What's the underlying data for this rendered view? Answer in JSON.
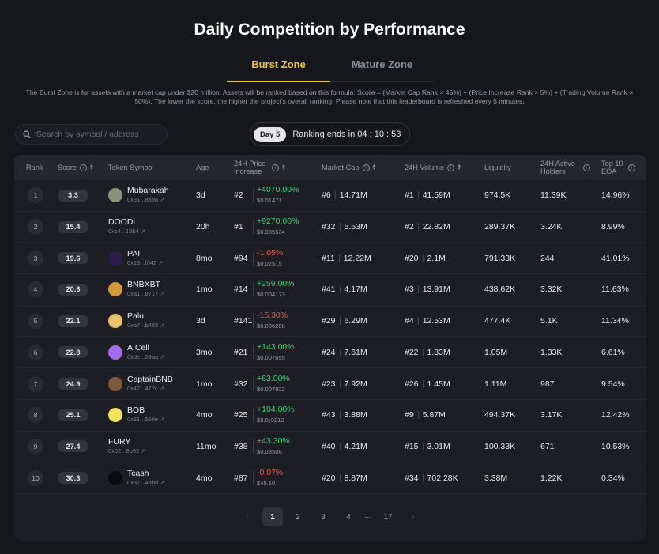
{
  "title": "Daily Competition by Performance",
  "tabs": {
    "burst": "Burst Zone",
    "mature": "Mature Zone"
  },
  "description": "The Burst Zone is for assets with a market cap under $20 million. Assets will be ranked based on this formula: Score = (Market Cap Rank × 45%) + (Price Increase Rank × 5%) + (Trading Volume Rank × 50%). The lower the score, the higher the project's overall ranking. Please note that this leaderboard is refreshed every 5 minutes.",
  "search": {
    "placeholder": "Search by symbol / address"
  },
  "day": {
    "label": "Day 5",
    "countdown": "Ranking ends in 04 : 10 : 53"
  },
  "headers": {
    "rank": "Rank",
    "score": "Score",
    "token": "Token Symbol",
    "age": "Age",
    "price": "24H Price Increase",
    "mcap": "Market Cap",
    "volume": "24H Volume",
    "liquidity": "Liquidity",
    "holders": "24H Active Holders",
    "eoa": "Top 10 EOA"
  },
  "rows": [
    {
      "rank": "1",
      "score": "3.3",
      "name": "Mubarakah",
      "addr": "0x31...8a9a",
      "age": "3d",
      "prank": "#2",
      "pct": "+4070.00%",
      "dir": "up",
      "price": "$0.01471",
      "mrank": "#6",
      "mcap": "14.71M",
      "vrank": "#1",
      "vol": "41.59M",
      "liq": "974.5K",
      "holders": "11.39K",
      "eoa": "14.96%",
      "avatar": "#8a8f7a"
    },
    {
      "rank": "2",
      "score": "15.4",
      "name": "DOODi",
      "addr": "0xc4...18b4",
      "age": "20h",
      "prank": "#1",
      "pct": "+9270.00%",
      "dir": "up",
      "price": "$0.005534",
      "mrank": "#32",
      "mcap": "5.53M",
      "vrank": "#2",
      "vol": "22.82M",
      "liq": "289.37K",
      "holders": "3.24K",
      "eoa": "8.99%",
      "avatar": ""
    },
    {
      "rank": "3",
      "score": "19.6",
      "name": "PAI",
      "addr": "0x13...f042",
      "age": "8mo",
      "prank": "#94",
      "pct": "-1.05%",
      "dir": "down",
      "price": "$0.02515",
      "mrank": "#11",
      "mcap": "12.22M",
      "vrank": "#20",
      "vol": "2.1M",
      "liq": "791.33K",
      "holders": "244",
      "eoa": "41.01%",
      "avatar": "#2a1d4d"
    },
    {
      "rank": "4",
      "score": "20.6",
      "name": "BNBXBT",
      "addr": "0xa1...8717",
      "age": "1mo",
      "prank": "#14",
      "pct": "+259.00%",
      "dir": "up",
      "price": "$0.004173",
      "mrank": "#41",
      "mcap": "4.17M",
      "vrank": "#3",
      "vol": "13.91M",
      "liq": "438.62K",
      "holders": "3.32K",
      "eoa": "11.63%",
      "avatar": "#d49a3a"
    },
    {
      "rank": "5",
      "score": "22.1",
      "name": "Palu",
      "addr": "0xb7...b483",
      "age": "3d",
      "prank": "#141",
      "pct": "-15.30%",
      "dir": "down",
      "price": "$0.006288",
      "mrank": "#29",
      "mcap": "6.29M",
      "vrank": "#4",
      "vol": "12.53M",
      "liq": "477.4K",
      "holders": "5.1K",
      "eoa": "11.34%",
      "avatar": "#e6c26a"
    },
    {
      "rank": "6",
      "score": "22.8",
      "name": "AICell",
      "addr": "0xde...09aa",
      "age": "3mo",
      "prank": "#21",
      "pct": "+143.00%",
      "dir": "up",
      "price": "$0.007655",
      "mrank": "#24",
      "mcap": "7.61M",
      "vrank": "#22",
      "vol": "1.83M",
      "liq": "1.05M",
      "holders": "1.33K",
      "eoa": "6.61%",
      "avatar": "#a36cf0"
    },
    {
      "rank": "7",
      "score": "24.9",
      "name": "CaptainBNB",
      "addr": "0x47...477c",
      "age": "1mo",
      "prank": "#32",
      "pct": "+63.00%",
      "dir": "up",
      "price": "$0.007922",
      "mrank": "#23",
      "mcap": "7.92M",
      "vrank": "#26",
      "vol": "1.45M",
      "liq": "1.11M",
      "holders": "987",
      "eoa": "9.54%",
      "avatar": "#7a5a3a"
    },
    {
      "rank": "8",
      "score": "25.1",
      "name": "BOB",
      "addr": "0x51...560e",
      "age": "4mo",
      "prank": "#25",
      "pct": "+104.00%",
      "dir": "up",
      "price": "$0.0₂9213",
      "mrank": "#43",
      "mcap": "3.88M",
      "vrank": "#9",
      "vol": "5.87M",
      "liq": "494.37K",
      "holders": "3.17K",
      "eoa": "12.42%",
      "avatar": "#f2e35a"
    },
    {
      "rank": "9",
      "score": "27.4",
      "name": "FURY",
      "addr": "0x02...8b92",
      "age": "11mo",
      "prank": "#38",
      "pct": "+43.30%",
      "dir": "up",
      "price": "$0.03508",
      "mrank": "#40",
      "mcap": "4.21M",
      "vrank": "#15",
      "vol": "3.01M",
      "liq": "100.33K",
      "holders": "671",
      "eoa": "10.53%",
      "avatar": ""
    },
    {
      "rank": "10",
      "score": "30.3",
      "name": "Tcash",
      "addr": "0x87...48bd",
      "age": "4mo",
      "prank": "#87",
      "pct": "-0.07%",
      "dir": "down",
      "price": "$45.10",
      "mrank": "#20",
      "mcap": "8.87M",
      "vrank": "#34",
      "vol": "702.28K",
      "liq": "3.38M",
      "holders": "1.22K",
      "eoa": "0.34%",
      "avatar": "#0b0b0b"
    }
  ],
  "pagination": {
    "pages": [
      "1",
      "2",
      "3",
      "4"
    ],
    "ellipsis": "···",
    "last": "17",
    "current": "1"
  }
}
